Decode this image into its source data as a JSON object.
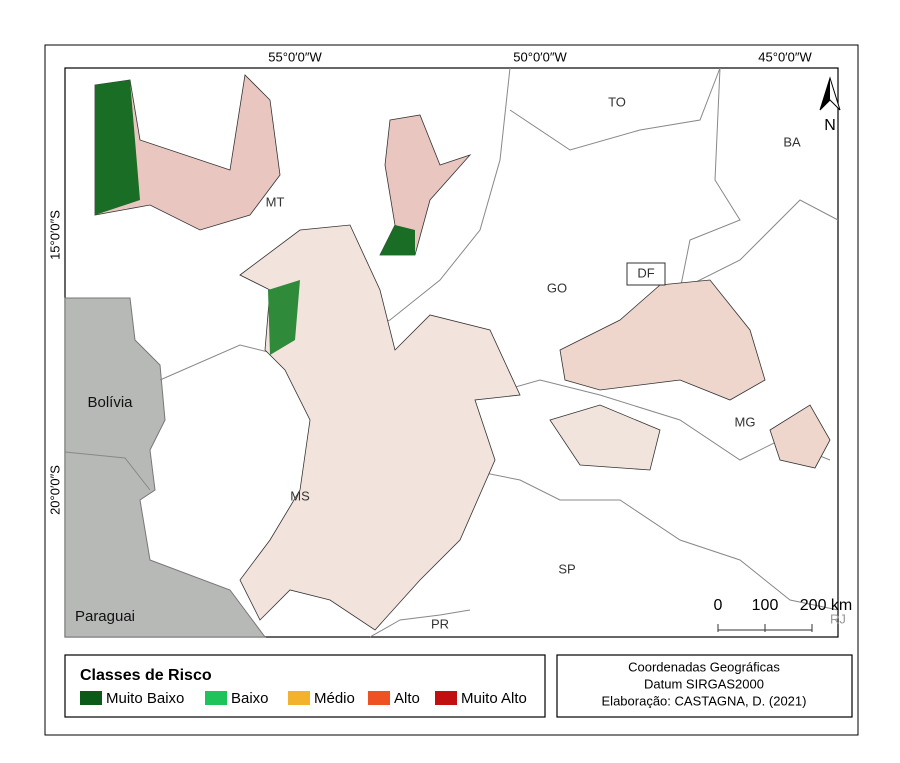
{
  "graticule": {
    "longitudes": [
      "55°0′0″W",
      "50°0′0″W",
      "45°0′0″W"
    ],
    "latitudes": [
      "15°0′0″S",
      "20°0′0″S"
    ]
  },
  "places": {
    "states": [
      "TO",
      "BA",
      "MT",
      "GO",
      "DF",
      "MG",
      "MS",
      "SP",
      "PR",
      "RJ"
    ],
    "countries": [
      "Bolívia",
      "Paraguai"
    ]
  },
  "north_arrow": "N",
  "scale_bar": [
    "0",
    "100",
    "200 km"
  ],
  "legend": {
    "title": "Classes de Risco",
    "items": [
      {
        "label": "Muito Baixo",
        "color": "#0b5a17"
      },
      {
        "label": "Baixo",
        "color": "#1fc35b"
      },
      {
        "label": "Médio",
        "color": "#f3b22c"
      },
      {
        "label": "Alto",
        "color": "#ef5222"
      },
      {
        "label": "Muito Alto",
        "color": "#c10f10"
      }
    ]
  },
  "credits": [
    "Coordenadas Geográficas",
    "Datum SIRGAS2000",
    "Elaboração: CASTAGNA, D. (2021)"
  ]
}
